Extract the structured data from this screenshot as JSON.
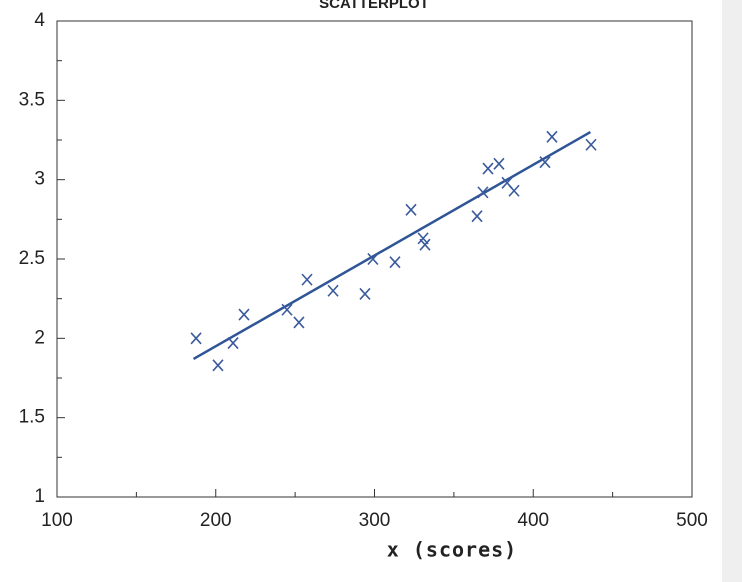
{
  "chart_data": {
    "type": "scatter",
    "title": "SCATTERPLOT",
    "x_label": "x (scores)",
    "x": [
      187.6,
      201.4,
      210.9,
      217.8,
      244.9,
      252.4,
      257.5,
      273.9,
      294,
      299,
      312.9,
      323,
      330.6,
      331.8,
      364.6,
      368.3,
      371.5,
      378.4,
      383.5,
      387.9,
      407.4,
      411.8,
      436.4
    ],
    "values": [
      2.0,
      1.83,
      1.97,
      2.15,
      2.18,
      2.1,
      2.37,
      2.3,
      2.28,
      2.5,
      2.48,
      2.81,
      2.63,
      2.59,
      2.77,
      2.92,
      3.07,
      3.1,
      2.98,
      2.93,
      3.11,
      3.27,
      3.22
    ],
    "color": "#3a5a9c",
    "trendline": {
      "x": [
        186,
        436
      ],
      "values": [
        1.87,
        3.3
      ],
      "color": "#2f5597"
    },
    "xlim": [
      100,
      500
    ],
    "xticks": [
      100,
      200,
      300,
      400,
      500
    ],
    "xminorticks": [
      150,
      250,
      350,
      450
    ],
    "ylim": [
      1,
      4
    ],
    "yticks": [
      1,
      1.5,
      2,
      2.5,
      3,
      3.5,
      4
    ],
    "yminorticks": [
      1.25,
      1.75,
      2.25,
      2.75,
      3.25,
      3.75
    ],
    "grid": false
  }
}
